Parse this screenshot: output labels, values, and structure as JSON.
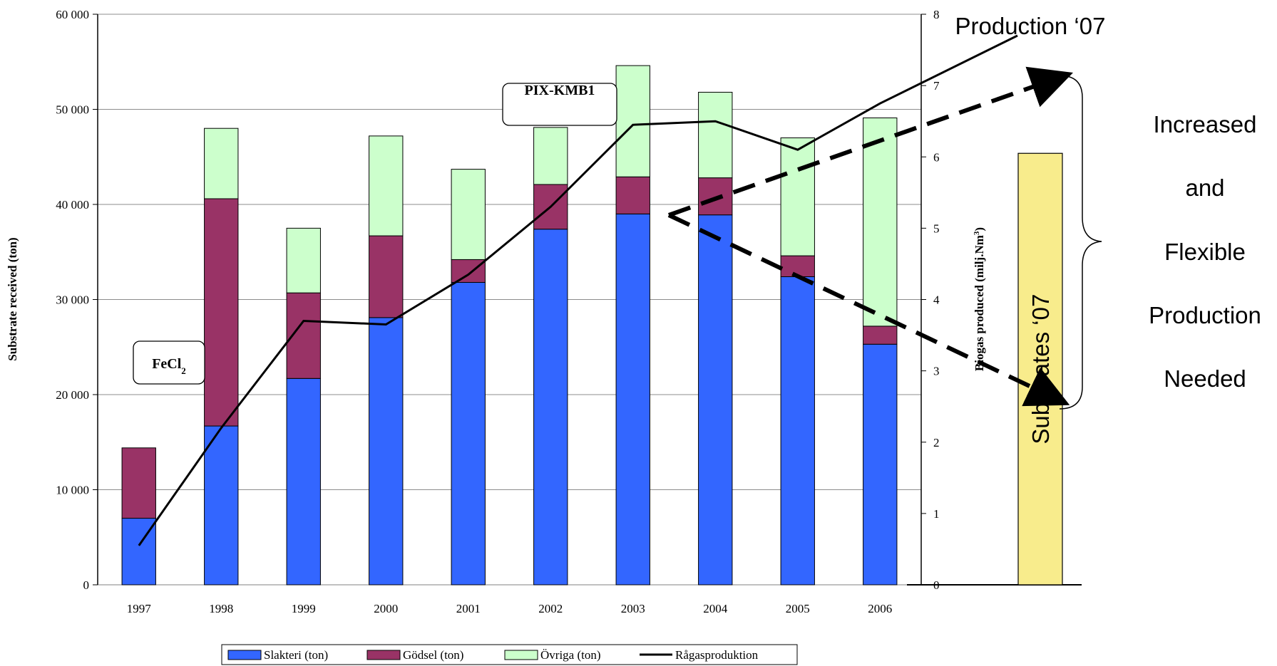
{
  "chart_data": {
    "type": "bar",
    "stacked": true,
    "categories": [
      "1997",
      "1998",
      "1999",
      "2000",
      "2001",
      "2002",
      "2003",
      "2004",
      "2005",
      "2006"
    ],
    "series": [
      {
        "name": "Slakteri (ton)",
        "color": "#3366ff",
        "values": [
          7000,
          16700,
          21700,
          28100,
          31800,
          37400,
          39000,
          38900,
          32400,
          25300
        ]
      },
      {
        "name": "Gödsel (ton)",
        "color": "#993366",
        "values": [
          7400,
          23900,
          9000,
          8600,
          2400,
          4700,
          3900,
          3900,
          2200,
          1900
        ]
      },
      {
        "name": "Övriga (ton)",
        "color": "#ccffcc",
        "values": [
          0,
          7400,
          6800,
          10500,
          9500,
          6000,
          11700,
          9000,
          12400,
          21900
        ]
      }
    ],
    "line_series": {
      "name": "Rågasproduktion",
      "color": "#000000",
      "axis": "right",
      "values": [
        0.55,
        2.2,
        3.7,
        3.65,
        4.35,
        5.3,
        6.45,
        6.5,
        6.1,
        6.75
      ]
    },
    "ylabel": "Substrate received (ton)",
    "y2label_main": "Biogas produced (milj.Nm",
    "y2label_sup": "3",
    "y2label_end": ")",
    "ylim": [
      0,
      60000
    ],
    "y2lim": [
      0,
      8
    ],
    "yticks": [
      "0",
      "10 000",
      "20 000",
      "30 000",
      "40 000",
      "50 000",
      "60 000"
    ],
    "y2ticks": [
      "0",
      "1",
      "2",
      "3",
      "4",
      "5",
      "6",
      "7",
      "8"
    ],
    "grid": true,
    "legend_position": "bottom",
    "extension": {
      "bar_label": "Substrates ‘07",
      "bar_color": "#f8ec8c",
      "bar_value_right_axis": 6.05,
      "line_label": "Production ‘07",
      "line_end_value_right_axis": 7.7
    }
  },
  "callouts": [
    {
      "main": "FeCl",
      "sub": "2"
    },
    {
      "main": "PIX-KMB1",
      "sub": ""
    }
  ],
  "annotation": {
    "lines": [
      "Increased",
      "and",
      "Flexible",
      "Production",
      "Needed"
    ]
  },
  "colors": {
    "gridline": "#8c8c8c",
    "arrow": "#000000"
  }
}
